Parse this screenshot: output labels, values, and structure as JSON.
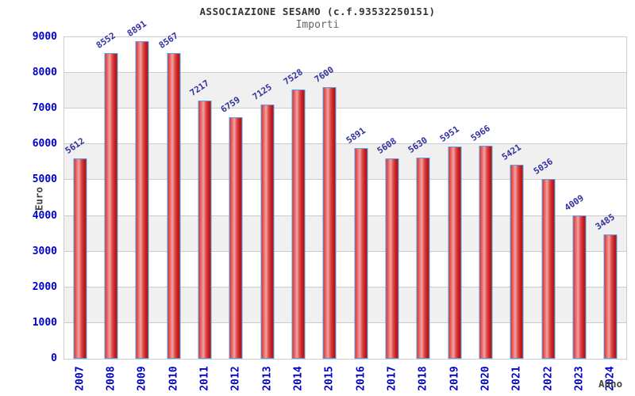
{
  "chart_data": {
    "type": "bar",
    "title": "ASSOCIAZIONE SESAMO (c.f.93532250151)",
    "subtitle": "Importi",
    "xlabel": "Anno",
    "ylabel": "Euro",
    "categories": [
      "2007",
      "2008",
      "2009",
      "2010",
      "2011",
      "2012",
      "2013",
      "2014",
      "2015",
      "2016",
      "2017",
      "2018",
      "2019",
      "2020",
      "2021",
      "2022",
      "2023",
      "2024"
    ],
    "values": [
      5612,
      8552,
      8891,
      8567,
      7217,
      6759,
      7125,
      7528,
      7600,
      5891,
      5608,
      5630,
      5951,
      5966,
      5421,
      5036,
      4009,
      3485
    ],
    "ylim": [
      0,
      9000
    ],
    "ytick_step": 1000,
    "legend": "none",
    "grid": "horizontal-lines-with-alternating-bands",
    "colors": {
      "background": "#ffffff",
      "bar_border": "#56a0e8",
      "bar_red_light": "#f0a3a3",
      "bar_red_main": "#e03535",
      "bar_red_dark": "#a81414",
      "value_label": "#3232a0",
      "axis_tick_label": "#0000cc",
      "band_shade": "#f0f0f0",
      "grid_line": "#cccccc",
      "title": "#333333",
      "subtitle": "#666666",
      "axis_title": "#444444"
    }
  }
}
